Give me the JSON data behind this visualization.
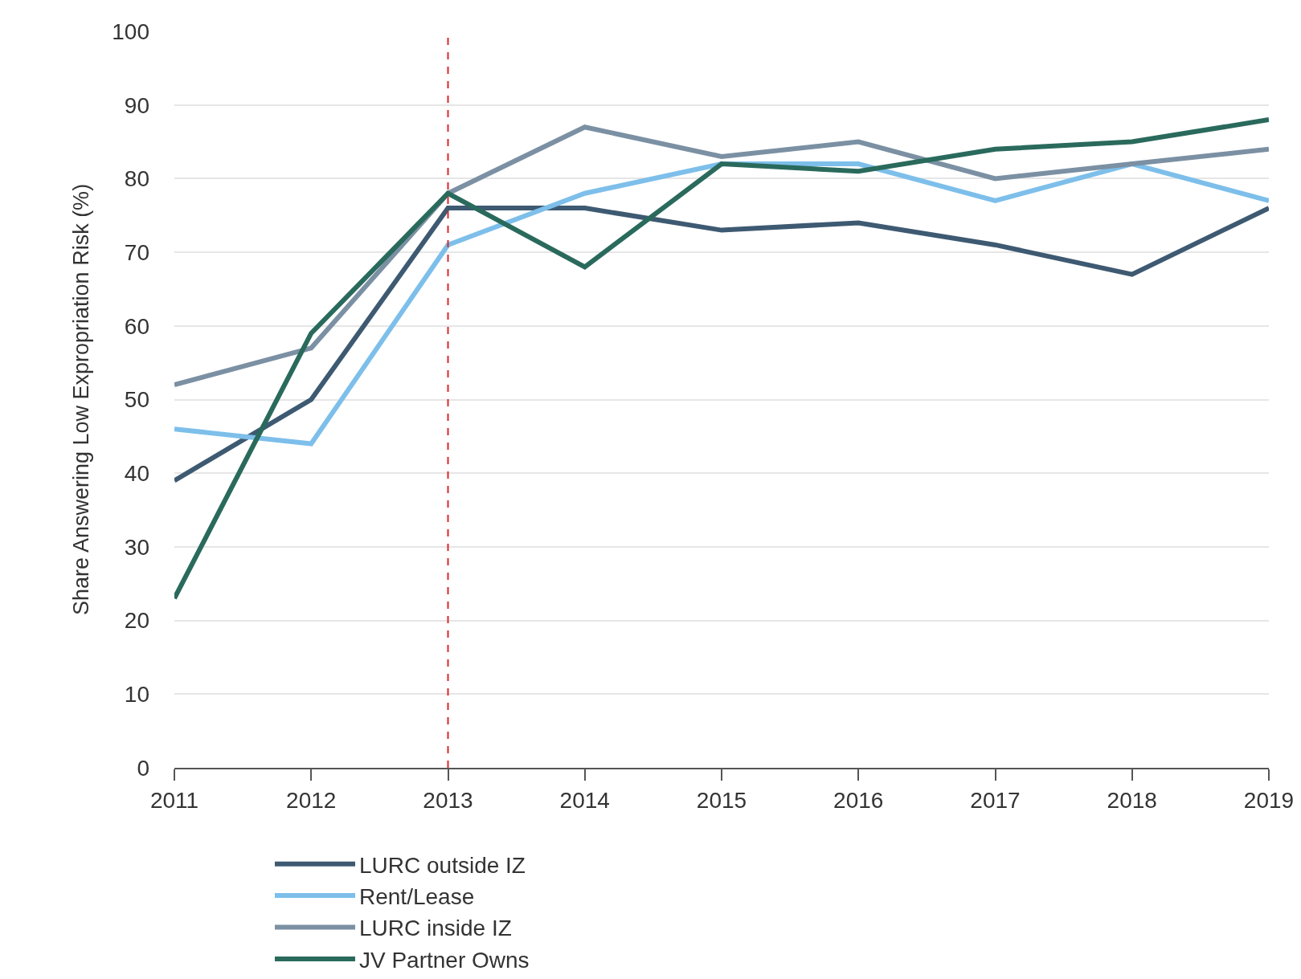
{
  "chart_data": {
    "type": "line",
    "ylabel": "Share Answering Low Expropriation Risk (%)",
    "x": [
      2011,
      2012,
      2013,
      2014,
      2015,
      2016,
      2017,
      2018,
      2019
    ],
    "series": [
      {
        "name": "LURC outside IZ",
        "color": "#3e5a72",
        "values": [
          39,
          50,
          76,
          76,
          73,
          74,
          71,
          67,
          76
        ]
      },
      {
        "name": "Rent/Lease",
        "color": "#7dbfea",
        "values": [
          46,
          44,
          71,
          78,
          82,
          82,
          77,
          82,
          77
        ]
      },
      {
        "name": "LURC inside IZ",
        "color": "#7b90a3",
        "values": [
          52,
          57,
          78,
          87,
          83,
          85,
          80,
          82,
          84
        ]
      },
      {
        "name": "JV Partner Owns",
        "color": "#2a6a5c",
        "values": [
          23,
          59,
          78,
          68,
          82,
          81,
          84,
          85,
          88
        ]
      }
    ],
    "xlim": [
      2011,
      2019
    ],
    "xticks": [
      2011,
      2012,
      2013,
      2014,
      2015,
      2016,
      2017,
      2018,
      2019
    ],
    "ylim": [
      0,
      100
    ],
    "yticks": [
      0,
      10,
      20,
      30,
      40,
      50,
      60,
      70,
      80,
      90,
      100
    ],
    "grid": "y",
    "legend": "bottom",
    "marker": "none",
    "line_style": "solid",
    "ref_lines": [
      {
        "axis": "x",
        "value": 2013,
        "color": "#d9262c",
        "line_style": "dashed"
      }
    ]
  }
}
